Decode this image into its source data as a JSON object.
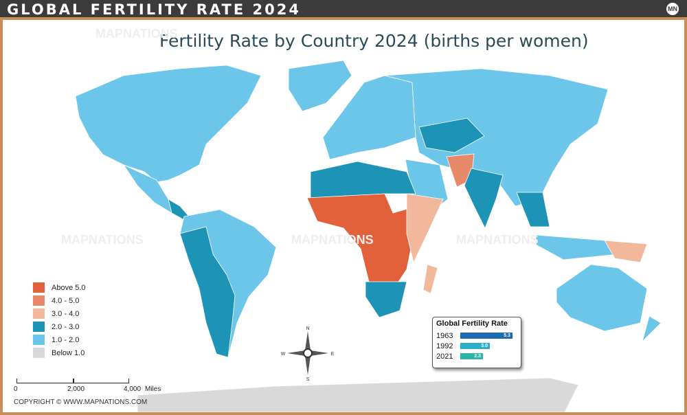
{
  "header": {
    "title": "GLOBAL FERTILITY RATE 2024",
    "logo": "MN"
  },
  "map_title": "Fertility Rate by Country 2024 (births per women)",
  "watermark": "MAPNATIONS",
  "legend": [
    {
      "label": "Above 5.0",
      "color": "#e2603a"
    },
    {
      "label": "4.0 - 5.0",
      "color": "#e8896a"
    },
    {
      "label": "3.0 - 4.0",
      "color": "#f2b89c"
    },
    {
      "label": "2.0 - 3.0",
      "color": "#1d93b6"
    },
    {
      "label": "1.0 - 2.0",
      "color": "#6cc6ea"
    },
    {
      "label": "Below 1.0",
      "color": "#d9d9d9"
    }
  ],
  "scale": {
    "ticks": [
      "0",
      "2,000",
      "4,000"
    ],
    "unit": "Miles"
  },
  "copyright": "COPYRIGHT © WWW.MAPNATIONS.COM",
  "compass": {
    "n": "N",
    "s": "S",
    "e": "E",
    "w": "W"
  },
  "global_rate": {
    "title": "Global Fertility Rate",
    "max": 6,
    "rows": [
      {
        "year": "1963",
        "value": "5.3",
        "color": "#1e6bb0"
      },
      {
        "year": "1992",
        "value": "3.0",
        "color": "#2bb0c8"
      },
      {
        "year": "2021",
        "value": "2.3",
        "color": "#2fb5a8"
      }
    ]
  }
}
